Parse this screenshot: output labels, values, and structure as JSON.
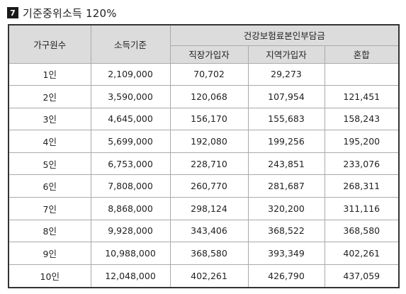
{
  "section": {
    "number": "7",
    "title": "기준중위소득 120%"
  },
  "table": {
    "headers": {
      "household": "가구원수",
      "income": "소득기준",
      "premium_group": "건강보험료본인부담금",
      "employee": "직장가입자",
      "regional": "지역가입자",
      "mixed": "혼합"
    },
    "rows": [
      {
        "household": "1인",
        "income": "2,109,000",
        "employee": "70,702",
        "regional": "29,273",
        "mixed": ""
      },
      {
        "household": "2인",
        "income": "3,590,000",
        "employee": "120,068",
        "regional": "107,954",
        "mixed": "121,451"
      },
      {
        "household": "3인",
        "income": "4,645,000",
        "employee": "156,170",
        "regional": "155,683",
        "mixed": "158,243"
      },
      {
        "household": "4인",
        "income": "5,699,000",
        "employee": "192,080",
        "regional": "199,256",
        "mixed": "195,200"
      },
      {
        "household": "5인",
        "income": "6,753,000",
        "employee": "228,710",
        "regional": "243,851",
        "mixed": "233,076"
      },
      {
        "household": "6인",
        "income": "7,808,000",
        "employee": "260,770",
        "regional": "281,687",
        "mixed": "268,311"
      },
      {
        "household": "7인",
        "income": "8,868,000",
        "employee": "298,124",
        "regional": "320,200",
        "mixed": "311,116"
      },
      {
        "household": "8인",
        "income": "9,928,000",
        "employee": "343,406",
        "regional": "368,522",
        "mixed": "368,580"
      },
      {
        "household": "9인",
        "income": "10,988,000",
        "employee": "368,580",
        "regional": "393,349",
        "mixed": "402,261"
      },
      {
        "household": "10인",
        "income": "12,048,000",
        "employee": "402,261",
        "regional": "426,790",
        "mixed": "437,059"
      }
    ]
  }
}
